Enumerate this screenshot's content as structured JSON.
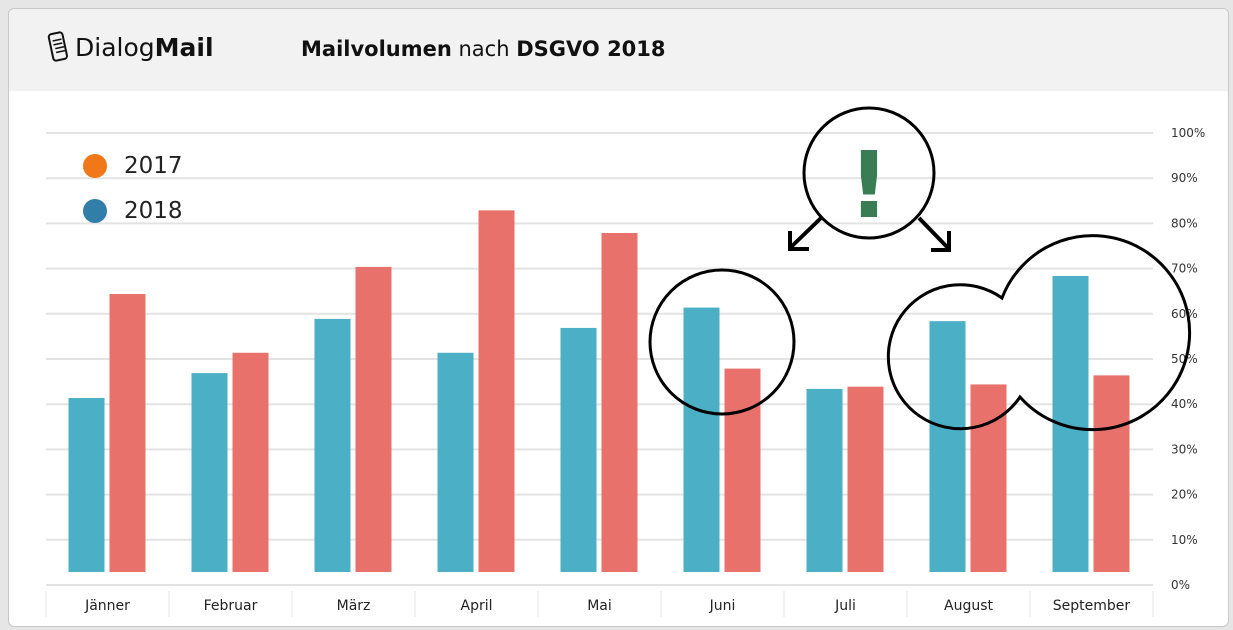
{
  "header": {
    "logo_light": "Dialog",
    "logo_bold": "Mail",
    "title_bold_prefix": "Mailvolumen",
    "title_mid": "nach",
    "title_bold_suffix": "DSGVO 2018"
  },
  "chart_data": {
    "type": "bar",
    "categories": [
      "Jänner",
      "Februar",
      "März",
      "April",
      "Mai",
      "Juni",
      "Juli",
      "August",
      "September"
    ],
    "series": [
      {
        "name": "2018",
        "color": "#4bafc6",
        "values": [
          38.5,
          44,
          56,
          48.5,
          54,
          58.5,
          40.5,
          55.5,
          65.5
        ]
      },
      {
        "name": "2017",
        "color": "#e8716b",
        "values": [
          61.5,
          48.5,
          67.5,
          80,
          75,
          45,
          41,
          41.5,
          43.5
        ]
      }
    ],
    "legend": [
      {
        "label": "2017",
        "color": "#f07818"
      },
      {
        "label": "2018",
        "color": "#317ea9"
      }
    ],
    "yticks": [
      "0%",
      "10%",
      "20%",
      "30%",
      "40%",
      "50%",
      "60%",
      "70%",
      "80%",
      "90%",
      "100%"
    ],
    "ylim": [
      0,
      100
    ],
    "y_axis_side": "right",
    "grid": true,
    "legend_position": "top-left",
    "annotations": {
      "exclamation": "!",
      "exclamation_color": "#3a7d54",
      "highlighted": [
        "Juni",
        "August",
        "September"
      ]
    }
  }
}
